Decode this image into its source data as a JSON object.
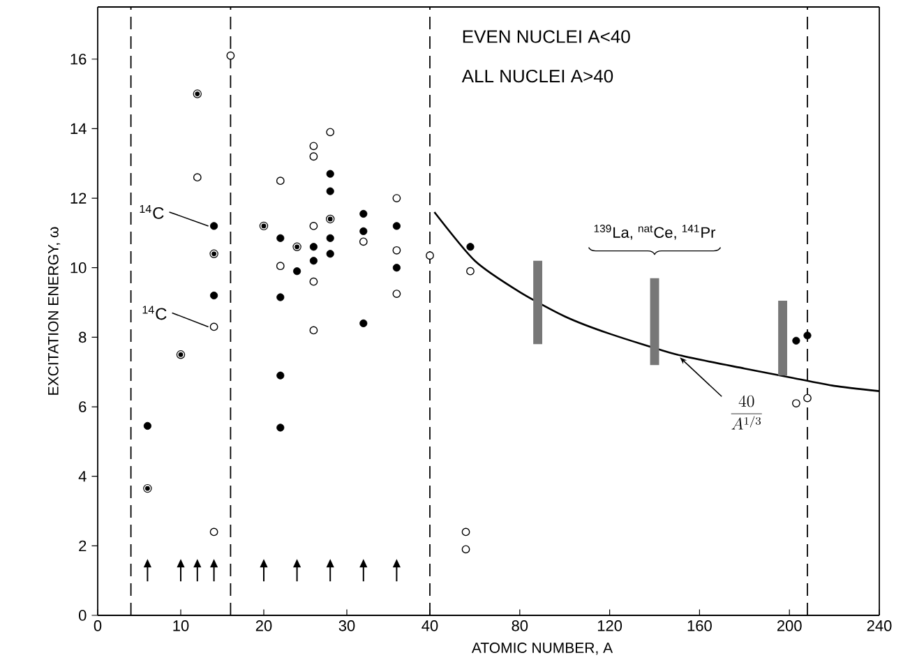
{
  "chart_data": [
    {
      "type": "scatter",
      "xlabel": null,
      "ylabel": "EXCITATION ENERGY, ω",
      "xlim": [
        0,
        40
      ],
      "ylim": [
        0,
        17.5
      ],
      "xticks": [
        0,
        10,
        20,
        30,
        40
      ],
      "yticks": [
        0,
        2,
        4,
        6,
        8,
        10,
        12,
        14,
        16
      ],
      "series": [
        {
          "color": "#000000",
          "marker": "circle",
          "x": [
            6,
            14,
            14,
            22,
            22,
            22,
            22,
            24,
            26,
            26,
            28,
            28,
            28,
            28,
            32,
            32,
            32,
            36,
            36
          ],
          "values": [
            5.45,
            11.2,
            9.2,
            10.85,
            9.15,
            6.9,
            5.4,
            9.9,
            10.6,
            10.2,
            12.7,
            12.2,
            10.85,
            10.4,
            11.55,
            11.05,
            8.4,
            11.2,
            10.0
          ]
        },
        {
          "color": "#000000",
          "marker": "open circle",
          "x": [
            12,
            14,
            14,
            16,
            22,
            22,
            26,
            26,
            26,
            26,
            26,
            28,
            32,
            36,
            36,
            36,
            40
          ],
          "values": [
            12.6,
            8.3,
            2.4,
            16.1,
            12.5,
            10.05,
            13.5,
            13.2,
            11.2,
            9.6,
            8.2,
            13.9,
            10.75,
            12.0,
            10.5,
            9.25,
            10.35
          ]
        },
        {
          "color": "#000000",
          "marker": "dotted circle",
          "x": [
            6,
            10,
            12,
            14,
            20,
            24,
            28
          ],
          "values": [
            3.65,
            7.5,
            15.0,
            10.4,
            11.2,
            10.6,
            11.4
          ]
        },
        {
          "color": "#000000",
          "marker": "triangle",
          "x": [
            6,
            10,
            12,
            14,
            20,
            24,
            28,
            32,
            36
          ],
          "values": [
            1.3,
            1.3,
            1.3,
            1.3,
            1.3,
            1.3,
            1.3,
            1.3,
            1.3
          ]
        }
      ],
      "ref_lines": [
        {
          "axis": "x",
          "value": 4,
          "line_style": "dashed",
          "color": "#000000"
        },
        {
          "axis": "x",
          "value": 16,
          "line_style": "dashed",
          "color": "#000000"
        },
        {
          "axis": "x",
          "value": 40,
          "line_style": "dashed",
          "color": "#000000"
        }
      ],
      "annotations": [
        {
          "text": "$^{14}$C",
          "x": 14,
          "y": 11.2
        },
        {
          "text": "$^{14}$C",
          "x": 14,
          "y": 8.3
        }
      ]
    },
    {
      "type": "scatter",
      "xlabel": "ATOMIC NUMBER, A",
      "xlim": [
        40,
        240
      ],
      "ylim": [
        0,
        17.5
      ],
      "xticks": [
        80,
        120,
        160,
        200,
        240
      ],
      "tick_labels": "x",
      "series": [
        {
          "color": "#000000",
          "marker": "circle",
          "x": [
            58,
            203,
            208
          ],
          "values": [
            10.6,
            7.9,
            8.05
          ]
        },
        {
          "color": "#000000",
          "marker": "open circle",
          "x": [
            58,
            56,
            56,
            203,
            208
          ],
          "values": [
            9.9,
            2.4,
            1.9,
            6.1,
            6.25
          ]
        },
        {
          "type": "line",
          "color": "#000000",
          "marker": "none",
          "line_style": "solid",
          "x": [
            42,
            60,
            80,
            100,
            120,
            150,
            180,
            200,
            220,
            240
          ],
          "values": [
            11.6,
            10.2,
            9.3,
            8.6,
            8.1,
            7.5,
            7.1,
            6.85,
            6.6,
            6.45
          ]
        },
        {
          "type": "bar",
          "color": "#777777",
          "x": [
            88,
            140,
            197
          ],
          "base": [
            7.8,
            7.2,
            6.9
          ],
          "values": [
            2.4,
            2.5,
            2.15
          ]
        }
      ],
      "ref_lines": [
        {
          "axis": "x",
          "value": 208,
          "line_style": "dashed",
          "color": "#000000"
        }
      ],
      "annotations": [
        "EVEN NUCLEI A<40",
        "ALL NUCLEI A>40",
        {
          "text": "$^{139}$La, $^{nat}$Ce, $^{141}$Pr",
          "x": 140,
          "y": 9.7
        },
        {
          "text": "\\frac{40}{A^{1/3}}",
          "x": 150,
          "y": 7.5
        }
      ]
    }
  ]
}
